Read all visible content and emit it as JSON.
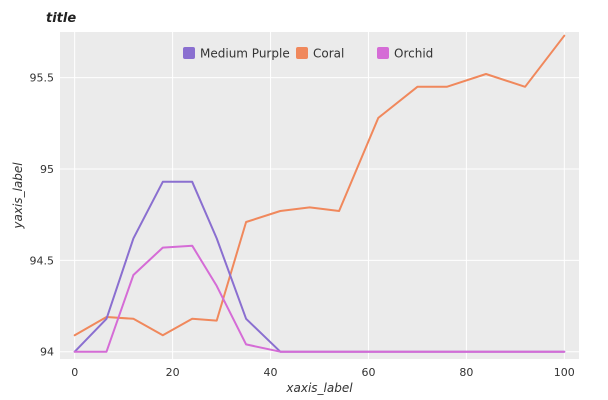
{
  "chart_data": {
    "type": "line",
    "title": "title",
    "xlabel": "xaxis_label",
    "ylabel": "yaxis_label",
    "xlim": [
      -3,
      103
    ],
    "ylim": [
      93.96,
      95.75
    ],
    "x_ticks": [
      0,
      20,
      40,
      60,
      80,
      100
    ],
    "y_ticks": [
      94,
      94.5,
      95,
      95.5
    ],
    "y_tick_labels": [
      "94",
      "94.5",
      "95",
      "95.5"
    ],
    "grid": true,
    "legend": "top-center",
    "series": [
      {
        "name": "Medium Purple",
        "color": "#8a6fd0",
        "x": [
          0,
          6.5,
          12,
          18,
          24,
          29,
          35,
          42,
          50,
          58,
          66,
          74,
          82,
          90,
          100
        ],
        "y": [
          94,
          94.18,
          94.62,
          94.93,
          94.93,
          94.62,
          94.18,
          94,
          94,
          94,
          94,
          94,
          94,
          94,
          94
        ]
      },
      {
        "name": "Coral",
        "color": "#f0885c",
        "x": [
          0,
          6.5,
          12,
          18,
          24,
          29,
          35,
          42,
          48,
          54,
          62,
          70,
          76,
          84,
          92,
          100
        ],
        "y": [
          94.09,
          94.19,
          94.18,
          94.09,
          94.18,
          94.17,
          94.71,
          94.77,
          94.79,
          94.77,
          95.28,
          95.45,
          95.45,
          95.52,
          95.45,
          95.73
        ]
      },
      {
        "name": "Orchid",
        "color": "#d56cd6",
        "x": [
          0,
          6.5,
          12,
          18,
          24,
          29,
          35,
          42,
          50,
          58,
          66,
          74,
          82,
          90,
          100
        ],
        "y": [
          94,
          94,
          94.42,
          94.57,
          94.58,
          94.36,
          94.04,
          94,
          94,
          94,
          94,
          94,
          94,
          94,
          94
        ]
      }
    ]
  }
}
